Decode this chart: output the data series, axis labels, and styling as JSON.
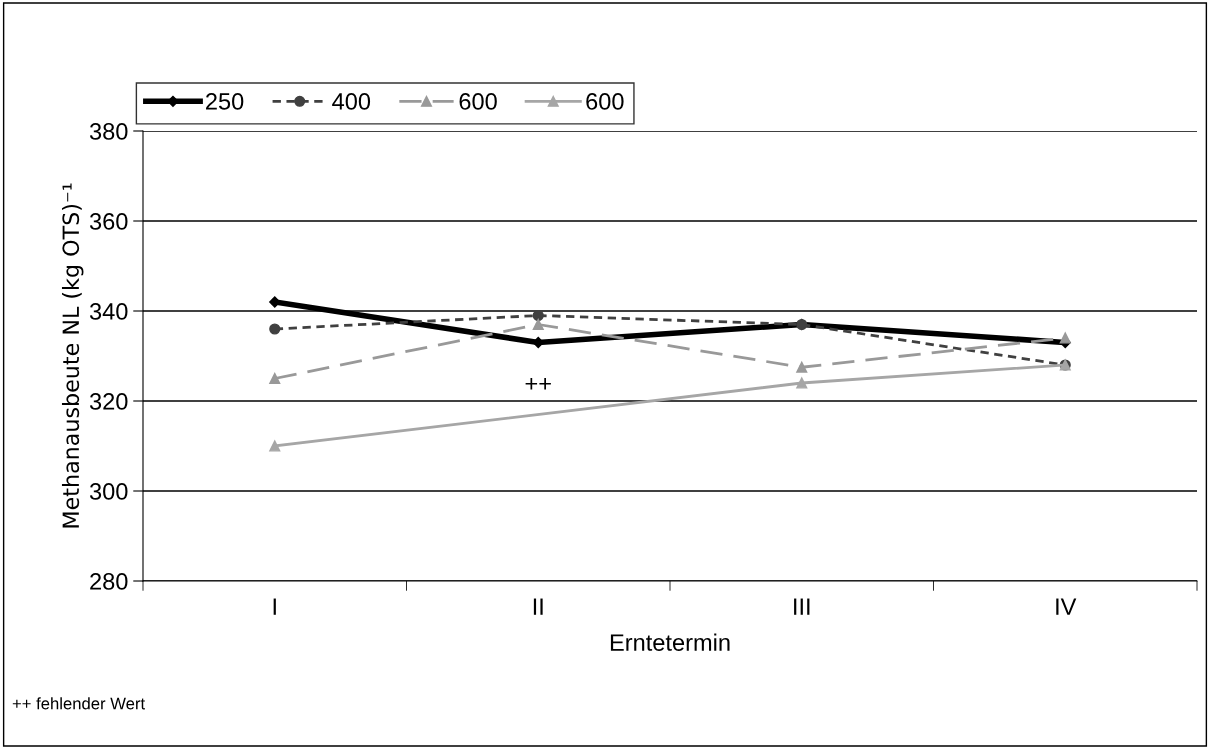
{
  "chart_data": {
    "type": "line",
    "xlabel": "Erntetermin",
    "ylabel": "Methanausbeute NL (kg OTS)⁻¹",
    "categories": [
      "I",
      "II",
      "III",
      "IV"
    ],
    "series": [
      {
        "name": "250",
        "color": "#000000",
        "marker": "diamond",
        "line_style": "solid",
        "values": [
          342,
          333,
          337,
          333
        ]
      },
      {
        "name": "400",
        "color": "#404040",
        "marker": "circle",
        "line_style": "dotted",
        "values": [
          336,
          339,
          337,
          328
        ]
      },
      {
        "name": "600",
        "color": "#999999",
        "marker": "triangle",
        "line_style": "dashed",
        "values": [
          325,
          337,
          327.5,
          334
        ]
      },
      {
        "name": "600",
        "color": "#a6a6a6",
        "marker": "triangle",
        "line_style": "solid",
        "values": [
          310,
          null,
          324,
          328
        ]
      }
    ],
    "ylim": [
      280,
      380
    ],
    "yticks": [
      280,
      300,
      320,
      340,
      360,
      380
    ],
    "grid": "y",
    "legend": "top left",
    "annotations": [
      "++",
      "++ fehlender Wert"
    ]
  }
}
